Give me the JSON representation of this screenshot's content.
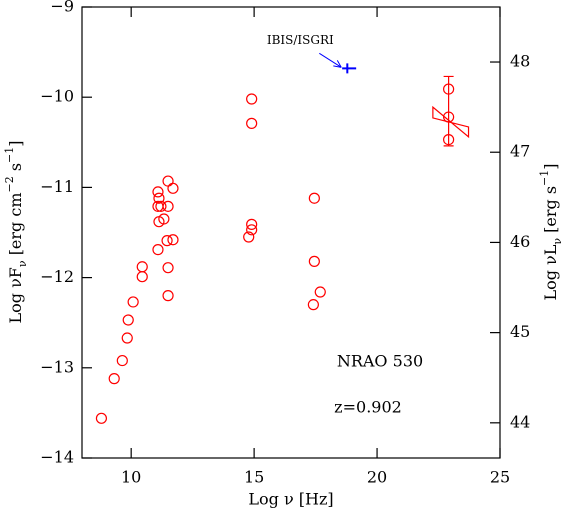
{
  "chart_data": {
    "type": "scatter",
    "xlabel": "Log ν [Hz]",
    "ylabel": [
      "Log νF",
      "ν",
      " [erg cm",
      "−2",
      " s",
      "−1",
      "]"
    ],
    "y2label": [
      "Log νL",
      "ν",
      " [erg s",
      "−1",
      "]"
    ],
    "annotations": [
      "NRAO 530",
      "z=0.902"
    ],
    "color": "#ff0000",
    "x": [
      8.79,
      9.31,
      9.64,
      9.84,
      9.88,
      10.08,
      10.45,
      10.45,
      11.09,
      11.13,
      11.09,
      11.09,
      11.13,
      11.21,
      11.33,
      11.5,
      11.5,
      11.7,
      11.46,
      11.7,
      11.5,
      11.5,
      14.9,
      14.9,
      14.9,
      14.9,
      14.78,
      17.45,
      17.45,
      17.69,
      17.41,
      22.91,
      22.91,
      22.91
    ],
    "values": [
      -13.56,
      -13.12,
      -12.92,
      -12.67,
      -12.47,
      -12.27,
      -11.88,
      -11.99,
      -11.05,
      -11.12,
      -11.21,
      -11.69,
      -11.38,
      -11.21,
      -11.35,
      -11.21,
      -10.93,
      -11.01,
      -11.59,
      -11.58,
      -11.89,
      -12.2,
      -10.02,
      -10.29,
      -11.41,
      -11.47,
      -11.55,
      -11.12,
      -11.82,
      -12.16,
      -12.3,
      -9.91,
      -10.22,
      -10.47
    ],
    "errorbar": {
      "x": 22.91,
      "low": -10.54,
      "high": -9.77
    },
    "bowtie": {
      "x": [
        22.27,
        23.72
      ],
      "high": [
        -10.11,
        -10.33
      ],
      "low": [
        -10.23,
        -10.44
      ]
    },
    "ibis": {
      "label": "IBIS/ISGRI",
      "color": "#0000ff",
      "x": 18.79,
      "value": -9.68,
      "xerr": [
        18.58,
        19.15
      ]
    },
    "xlim": [
      8,
      25
    ],
    "xticks": [
      10,
      15,
      20,
      25
    ],
    "ylim": [
      -14,
      -9
    ],
    "yticks": [
      {
        "value": -9,
        "label": "−9"
      },
      {
        "value": -10,
        "label": "−10"
      },
      {
        "value": -11,
        "label": "−11"
      },
      {
        "value": -12,
        "label": "−12"
      },
      {
        "value": -13,
        "label": "−13"
      },
      {
        "value": -14,
        "label": "−14"
      }
    ],
    "y2lim": [
      43.61,
      48.61
    ],
    "y2ticks": [
      44,
      45,
      46,
      47,
      48
    ]
  }
}
